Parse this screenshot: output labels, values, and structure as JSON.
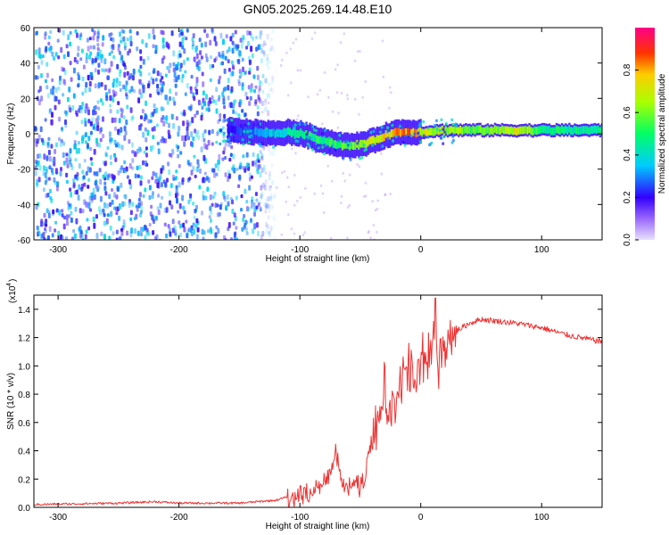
{
  "title": "GN05.2025.269.14.48.E10",
  "chart_data": [
    {
      "type": "heatmap",
      "xlabel": "Height of straight line (km)",
      "ylabel": "Frequency (Hz)",
      "xlim": [
        -320,
        150
      ],
      "ylim": [
        -60,
        60
      ],
      "x_ticks": [
        -300,
        -200,
        -100,
        0,
        100
      ],
      "y_ticks": [
        -60,
        -40,
        -20,
        0,
        20,
        40,
        60
      ],
      "colorbar": {
        "label": "Normalized spectral amplitude",
        "range": [
          0.0,
          1.0
        ],
        "ticks": [
          0.0,
          0.2,
          0.4,
          0.6,
          0.8
        ],
        "colormap": "rainbow"
      },
      "ridge": {
        "x": [
          -160,
          -140,
          -120,
          -110,
          -100,
          -90,
          -80,
          -70,
          -60,
          -50,
          -40,
          -30,
          -20,
          -10,
          0,
          20,
          50,
          80,
          100,
          120,
          150
        ],
        "freq": [
          2,
          1,
          0,
          1,
          0,
          -2,
          -4,
          -6,
          -7,
          -6,
          -4,
          -1,
          1,
          1,
          1,
          2,
          2,
          2,
          2,
          2,
          2
        ],
        "amplitude": [
          0.2,
          0.3,
          0.38,
          0.45,
          0.5,
          0.55,
          0.5,
          0.55,
          0.6,
          0.65,
          0.7,
          0.75,
          0.8,
          0.82,
          0.72,
          0.62,
          0.58,
          0.68,
          0.5,
          0.48,
          0.45
        ]
      },
      "noise_region_xmax": -135
    },
    {
      "type": "line",
      "xlabel": "Height of straight line (km)",
      "ylabel": "SNR (10 * v/v)",
      "y_scale_label": "(x10",
      "y_scale_exp": "4",
      "xlim": [
        -320,
        150
      ],
      "ylim": [
        0,
        1.5
      ],
      "x_ticks": [
        -300,
        -200,
        -100,
        0,
        100
      ],
      "y_ticks": [
        0.0,
        0.2,
        0.4,
        0.6,
        0.8,
        1.0,
        1.2,
        1.4
      ],
      "color": "#ee3333",
      "series": [
        {
          "x": [
            -320,
            -250,
            -220,
            -200,
            -150,
            -120,
            -100,
            -90,
            -80,
            -75,
            -70,
            -65,
            -60,
            -55,
            -50,
            -45,
            -40,
            -35,
            -30,
            -25,
            -20,
            -15,
            -10,
            -5,
            0,
            5,
            10,
            15,
            20,
            30,
            40,
            50,
            60,
            80,
            100,
            120,
            150
          ],
          "values": [
            0.02,
            0.03,
            0.04,
            0.03,
            0.03,
            0.05,
            0.1,
            0.12,
            0.2,
            0.25,
            0.4,
            0.2,
            0.15,
            0.2,
            0.15,
            0.3,
            0.5,
            0.7,
            0.9,
            0.65,
            0.85,
            0.95,
            1.05,
            0.9,
            1.1,
            1.1,
            1.25,
            1.05,
            1.2,
            1.25,
            1.3,
            1.33,
            1.32,
            1.3,
            1.27,
            1.22,
            1.17
          ],
          "spike_peak": [
            12,
            1.48
          ]
        }
      ]
    }
  ]
}
